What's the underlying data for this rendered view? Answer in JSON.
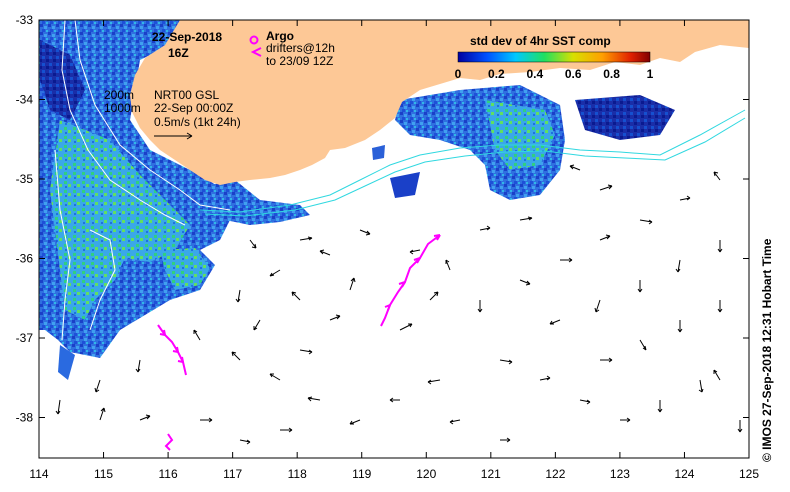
{
  "map": {
    "title_date": "22-Sep-2018",
    "title_hour": "16Z",
    "legend_argo_label": "Argo",
    "legend_drifter_label": "drifters@12h",
    "legend_drifter_sub": "to 23/09 12Z",
    "contour_200": "200m",
    "contour_1000": "1000m",
    "product": "NRT00 GSL",
    "product_date": "22-Sep 00:00Z",
    "scale_label": "0.5m/s (1kt 24h)",
    "colorbar_title": "std dev of 4hr SST comp",
    "colorbar_ticks": [
      "0",
      "0.2",
      "0.4",
      "0.6",
      "0.8",
      "1"
    ],
    "side_label": "© IMOS 27-Sep-2018 12:31 Hobart Time",
    "lon_ticks": [
      "114",
      "115",
      "116",
      "117",
      "118",
      "119",
      "120",
      "121",
      "122",
      "123",
      "124",
      "125"
    ],
    "lat_ticks": [
      "-33",
      "-34",
      "-35",
      "-36",
      "-37",
      "-38"
    ],
    "colors": {
      "land": "#fdc896",
      "argo": "#ff00ff",
      "drifter": "#ff00ff",
      "current_line": "#30d8e0",
      "contour": "#ffffff"
    }
  }
}
